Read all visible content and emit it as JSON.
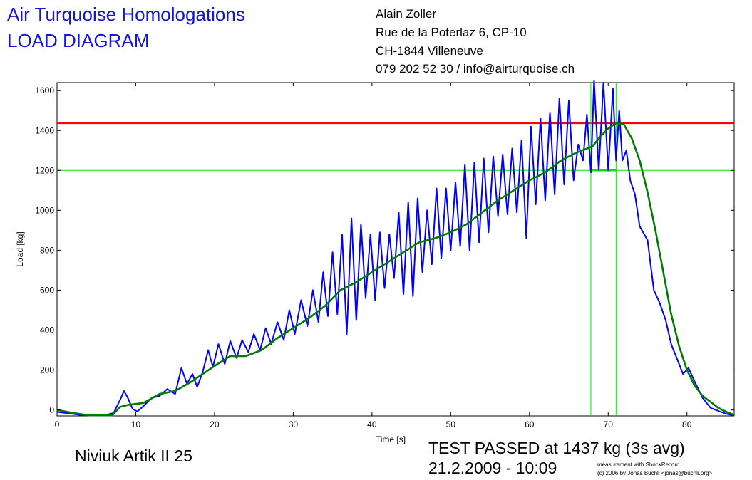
{
  "header": {
    "company": "Air Turquoise Homologations",
    "doc_type": "LOAD DIAGRAM",
    "address": [
      "Alain Zoller",
      "Rue de la Poterlaz 6, CP-10",
      "CH-1844 Villeneuve",
      "079 202 52 30 / info@airturquoise.ch"
    ]
  },
  "footer": {
    "glider": "Niviuk Artik II 25",
    "result": "TEST PASSED at 1437 kg (3s avg)",
    "datetime": "21.2.2009 - 10:09",
    "credit_1": "measurement with ShockRecord",
    "credit_2": "(c) 2006 by Jonas Buchli <jonas@buchli.org>"
  },
  "colors": {
    "raw_series": "#0000ff",
    "avg_series": "#007a00",
    "pass_line": "#ff0000",
    "reference_lines": "#00e600"
  },
  "chart_data": {
    "type": "line",
    "xlabel": "Time [s]",
    "ylabel": "Load [kg]",
    "xlim": [
      0,
      86
    ],
    "ylim": [
      -30,
      1640
    ],
    "xticks": [
      0,
      10,
      20,
      30,
      40,
      50,
      60,
      70,
      80
    ],
    "yticks": [
      0,
      200,
      400,
      600,
      800,
      1000,
      1200,
      1400,
      1600
    ],
    "grid": false,
    "reference_lines": [
      {
        "orientation": "horizontal",
        "y": 1437,
        "role": "pass-load"
      },
      {
        "orientation": "horizontal",
        "y": 1200,
        "role": "min-load"
      },
      {
        "orientation": "vertical",
        "x": 67.8
      },
      {
        "orientation": "vertical",
        "x": 71
      }
    ],
    "series": [
      {
        "role": "raw",
        "points": [
          [
            0,
            -10
          ],
          [
            3,
            -25
          ],
          [
            6,
            -27
          ],
          [
            7.2,
            -15
          ],
          [
            8,
            50
          ],
          [
            8.5,
            95
          ],
          [
            9,
            60
          ],
          [
            9.6,
            5
          ],
          [
            10.2,
            -8
          ],
          [
            11,
            20
          ],
          [
            12,
            60
          ],
          [
            13,
            70
          ],
          [
            14,
            105
          ],
          [
            15,
            80
          ],
          [
            15.8,
            210
          ],
          [
            16.5,
            130
          ],
          [
            17.2,
            180
          ],
          [
            17.8,
            115
          ],
          [
            18.5,
            190
          ],
          [
            19.2,
            300
          ],
          [
            19.8,
            215
          ],
          [
            20.5,
            330
          ],
          [
            21.3,
            230
          ],
          [
            22,
            345
          ],
          [
            22.8,
            260
          ],
          [
            23.5,
            350
          ],
          [
            24.3,
            290
          ],
          [
            25,
            380
          ],
          [
            25.8,
            300
          ],
          [
            26.5,
            410
          ],
          [
            27.2,
            330
          ],
          [
            28,
            440
          ],
          [
            28.8,
            350
          ],
          [
            29.5,
            500
          ],
          [
            30.2,
            380
          ],
          [
            31,
            550
          ],
          [
            31.8,
            420
          ],
          [
            32.5,
            600
          ],
          [
            33.2,
            440
          ],
          [
            33.8,
            690
          ],
          [
            34.4,
            470
          ],
          [
            35,
            790
          ],
          [
            35.6,
            480
          ],
          [
            36.2,
            880
          ],
          [
            36.8,
            380
          ],
          [
            37.4,
            960
          ],
          [
            38,
            450
          ],
          [
            38.6,
            930
          ],
          [
            39.2,
            560
          ],
          [
            39.8,
            880
          ],
          [
            40.4,
            550
          ],
          [
            41,
            890
          ],
          [
            41.6,
            610
          ],
          [
            42.2,
            880
          ],
          [
            42.8,
            660
          ],
          [
            43.4,
            990
          ],
          [
            44,
            580
          ],
          [
            44.6,
            1040
          ],
          [
            45.2,
            570
          ],
          [
            45.8,
            1060
          ],
          [
            46.4,
            690
          ],
          [
            47,
            1000
          ],
          [
            47.6,
            730
          ],
          [
            48.2,
            1110
          ],
          [
            48.8,
            760
          ],
          [
            49.4,
            1110
          ],
          [
            50,
            800
          ],
          [
            50.6,
            1140
          ],
          [
            51.2,
            820
          ],
          [
            51.8,
            1230
          ],
          [
            52.4,
            800
          ],
          [
            53,
            1240
          ],
          [
            53.6,
            840
          ],
          [
            54.2,
            1260
          ],
          [
            54.8,
            890
          ],
          [
            55.4,
            1270
          ],
          [
            56,
            970
          ],
          [
            56.6,
            1280
          ],
          [
            57.2,
            980
          ],
          [
            57.8,
            1310
          ],
          [
            58.4,
            990
          ],
          [
            59,
            1350
          ],
          [
            59.6,
            860
          ],
          [
            60.2,
            1420
          ],
          [
            60.8,
            1030
          ],
          [
            61.4,
            1460
          ],
          [
            62,
            1050
          ],
          [
            62.6,
            1490
          ],
          [
            63.2,
            1080
          ],
          [
            63.8,
            1560
          ],
          [
            64.4,
            1130
          ],
          [
            65,
            1550
          ],
          [
            65.6,
            1150
          ],
          [
            66.2,
            1330
          ],
          [
            66.8,
            1250
          ],
          [
            67.3,
            1480
          ],
          [
            67.8,
            1190
          ],
          [
            68.2,
            1650
          ],
          [
            68.8,
            1200
          ],
          [
            69.4,
            1640
          ],
          [
            70,
            1200
          ],
          [
            70.6,
            1610
          ],
          [
            71,
            1250
          ],
          [
            71.4,
            1500
          ],
          [
            71.8,
            1250
          ],
          [
            72.3,
            1300
          ],
          [
            72.8,
            1150
          ],
          [
            73.4,
            1080
          ],
          [
            74,
            920
          ],
          [
            75,
            850
          ],
          [
            75.8,
            600
          ],
          [
            76.5,
            540
          ],
          [
            77.3,
            450
          ],
          [
            78,
            330
          ],
          [
            78.8,
            250
          ],
          [
            79.5,
            180
          ],
          [
            80.2,
            210
          ],
          [
            81,
            140
          ],
          [
            82,
            60
          ],
          [
            83,
            10
          ],
          [
            84,
            -5
          ],
          [
            85,
            -20
          ],
          [
            86,
            -28
          ]
        ]
      },
      {
        "role": "avg",
        "points": [
          [
            0,
            0
          ],
          [
            2,
            -15
          ],
          [
            4,
            -27
          ],
          [
            7,
            -27
          ],
          [
            8,
            15
          ],
          [
            9,
            25
          ],
          [
            11,
            35
          ],
          [
            13,
            80
          ],
          [
            15,
            95
          ],
          [
            17,
            140
          ],
          [
            18.5,
            180
          ],
          [
            20,
            220
          ],
          [
            22,
            270
          ],
          [
            24,
            270
          ],
          [
            26,
            300
          ],
          [
            28,
            360
          ],
          [
            30,
            410
          ],
          [
            32,
            460
          ],
          [
            34,
            520
          ],
          [
            36,
            600
          ],
          [
            38,
            640
          ],
          [
            40,
            690
          ],
          [
            42,
            740
          ],
          [
            44,
            790
          ],
          [
            46,
            840
          ],
          [
            48,
            860
          ],
          [
            50,
            890
          ],
          [
            52,
            930
          ],
          [
            54,
            990
          ],
          [
            56,
            1050
          ],
          [
            58,
            1100
          ],
          [
            60,
            1150
          ],
          [
            62,
            1190
          ],
          [
            64,
            1250
          ],
          [
            66,
            1290
          ],
          [
            68,
            1320
          ],
          [
            69,
            1370
          ],
          [
            70,
            1410
          ],
          [
            71,
            1437
          ],
          [
            72,
            1430
          ],
          [
            73,
            1360
          ],
          [
            74,
            1250
          ],
          [
            75,
            1090
          ],
          [
            76,
            900
          ],
          [
            77,
            690
          ],
          [
            78,
            480
          ],
          [
            79,
            320
          ],
          [
            80,
            200
          ],
          [
            81,
            120
          ],
          [
            82,
            70
          ],
          [
            83,
            40
          ],
          [
            84,
            10
          ],
          [
            85,
            -10
          ],
          [
            86,
            -25
          ]
        ]
      }
    ]
  }
}
